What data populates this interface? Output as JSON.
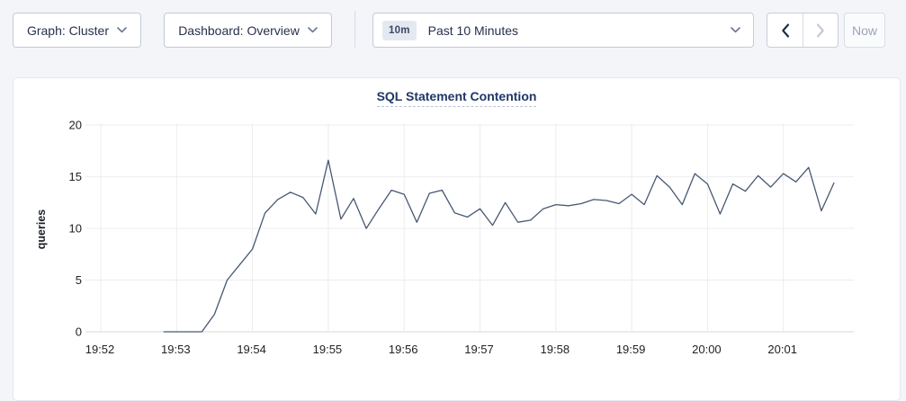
{
  "toolbar": {
    "graph_label": "Graph: Cluster",
    "dashboard_label": "Dashboard: Overview",
    "time_range_badge": "10m",
    "time_range_label": "Past 10 Minutes",
    "now_label": "Now"
  },
  "chart": {
    "title": "SQL Statement Contention"
  },
  "colors": {
    "accent_navy": "#1f3767",
    "series_line": "#475872",
    "page_background": "#f4f5f9"
  },
  "chart_data": {
    "type": "line",
    "title": "SQL Statement Contention",
    "xlabel": "",
    "ylabel": "queries",
    "ylim": [
      0,
      20
    ],
    "yticks": [
      0,
      5,
      10,
      15,
      20
    ],
    "xticks": [
      "19:52",
      "19:53",
      "19:54",
      "19:55",
      "19:56",
      "19:57",
      "19:58",
      "19:59",
      "20:00",
      "20:01"
    ],
    "grid": true,
    "legend": "none",
    "line_color": "#475872",
    "series": [
      {
        "name": "queries",
        "x": [
          "19:52:50",
          "19:53:00",
          "19:53:10",
          "19:53:20",
          "19:53:30",
          "19:53:40",
          "19:53:50",
          "19:54:00",
          "19:54:10",
          "19:54:20",
          "19:54:30",
          "19:54:40",
          "19:54:50",
          "19:55:00",
          "19:55:10",
          "19:55:20",
          "19:55:30",
          "19:55:40",
          "19:55:50",
          "19:56:00",
          "19:56:10",
          "19:56:20",
          "19:56:30",
          "19:56:40",
          "19:56:50",
          "19:57:00",
          "19:57:10",
          "19:57:20",
          "19:57:30",
          "19:57:40",
          "19:57:50",
          "19:58:00",
          "19:58:10",
          "19:58:20",
          "19:58:30",
          "19:58:40",
          "19:58:50",
          "19:59:00",
          "19:59:10",
          "19:59:20",
          "19:59:30",
          "19:59:40",
          "19:59:50",
          "20:00:00",
          "20:00:10",
          "20:00:20",
          "20:00:30",
          "20:00:40",
          "20:00:50",
          "20:01:00",
          "20:01:10",
          "20:01:20",
          "20:01:30",
          "20:01:40"
        ],
        "y": [
          0,
          0,
          0,
          0,
          1.7,
          5.0,
          6.5,
          8.0,
          11.5,
          12.8,
          13.5,
          13.0,
          11.4,
          16.6,
          10.9,
          12.9,
          10.0,
          11.9,
          13.7,
          13.3,
          10.6,
          13.4,
          13.7,
          11.5,
          11.1,
          11.9,
          10.3,
          12.5,
          10.6,
          10.8,
          11.9,
          12.3,
          12.2,
          12.4,
          12.8,
          12.7,
          12.4,
          13.3,
          12.3,
          15.1,
          14.0,
          12.3,
          15.3,
          14.3,
          11.4,
          14.3,
          13.6,
          15.1,
          14.0,
          15.3,
          14.5,
          15.9,
          11.7,
          14.4
        ]
      }
    ]
  }
}
